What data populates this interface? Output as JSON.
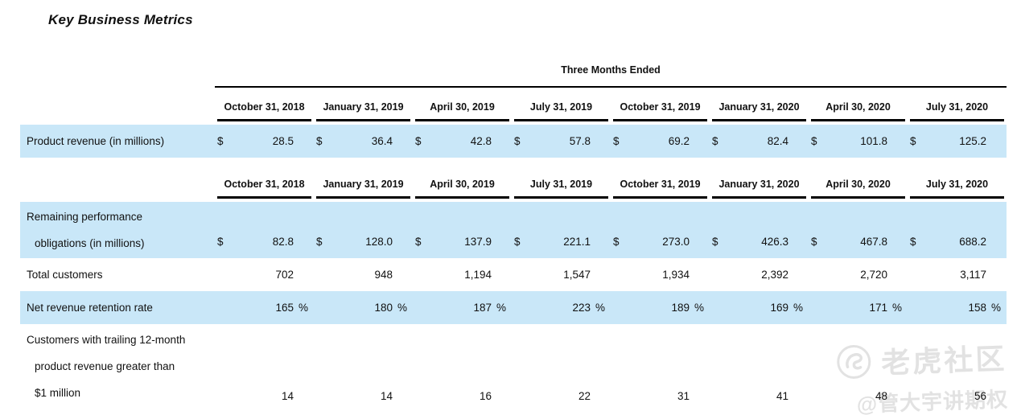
{
  "page": {
    "title": "Key Business Metrics"
  },
  "colors": {
    "highlight": "#c9e7f8",
    "text": "#111111",
    "rule": "#000000",
    "watermark": "#e2e2e2"
  },
  "table": {
    "group_header": "Three Months Ended",
    "columns": [
      "October 31, 2018",
      "January 31, 2019",
      "April 30, 2019",
      "July 31, 2019",
      "October 31, 2019",
      "January 31, 2020",
      "April 30, 2020",
      "July 31, 2020"
    ],
    "row_groups": [
      {
        "group_header": true,
        "column_headers": true,
        "rows": [
          {
            "label_lines": [
              "Product revenue (in millions)"
            ],
            "highlight": true,
            "currency": "$",
            "suffix": "",
            "values": [
              "28.5",
              "36.4",
              "42.8",
              "57.8",
              "69.2",
              "82.4",
              "101.8",
              "125.2"
            ]
          }
        ]
      },
      {
        "group_header": false,
        "column_headers": true,
        "rows": [
          {
            "label_lines": [
              "Remaining performance",
              "obligations (in millions)"
            ],
            "highlight": true,
            "currency": "$",
            "suffix": "",
            "values": [
              "82.8",
              "128.0",
              "137.9",
              "221.1",
              "273.0",
              "426.3",
              "467.8",
              "688.2"
            ]
          },
          {
            "label_lines": [
              "Total customers"
            ],
            "highlight": false,
            "currency": "",
            "suffix": "",
            "values": [
              "702",
              "948",
              "1,194",
              "1,547",
              "1,934",
              "2,392",
              "2,720",
              "3,117"
            ]
          },
          {
            "label_lines": [
              "Net revenue retention rate"
            ],
            "highlight": true,
            "currency": "",
            "suffix": "%",
            "values": [
              "165",
              "180",
              "187",
              "223",
              "189",
              "169",
              "171",
              "158"
            ]
          },
          {
            "label_lines": [
              "Customers with trailing 12-month",
              "product revenue greater than",
              "$1 million"
            ],
            "highlight": false,
            "currency": "",
            "suffix": "",
            "values": [
              "14",
              "14",
              "16",
              "22",
              "31",
              "41",
              "48",
              "56"
            ]
          }
        ]
      }
    ]
  },
  "watermark": {
    "brand": "老虎社区",
    "handle": "@管大宇讲期权",
    "icon": "tiger-logo-icon"
  }
}
